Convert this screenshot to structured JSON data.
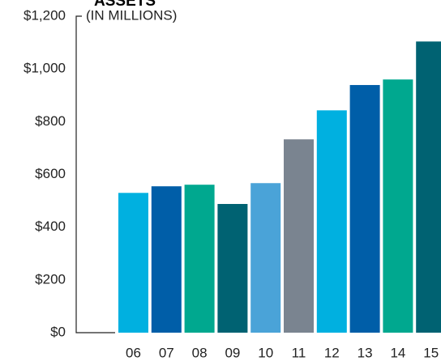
{
  "chart_data": {
    "type": "bar",
    "title": "ASSETS",
    "subtitle": "(IN MILLIONS)",
    "categories": [
      "06",
      "07",
      "08",
      "09",
      "10",
      "11",
      "12",
      "13",
      "14",
      "15"
    ],
    "values": [
      530,
      555,
      561,
      488,
      567,
      733,
      843,
      939,
      960,
      1104
    ],
    "colors": [
      "#00b0e0",
      "#005ea8",
      "#00a88f",
      "#006272",
      "#4aa3d8",
      "#7a8490",
      "#00b0e0",
      "#005ea8",
      "#00a88f",
      "#006272"
    ],
    "ylim": [
      0,
      1200
    ],
    "yticks": [
      {
        "value": 0,
        "label": "$0"
      },
      {
        "value": 200,
        "label": "$200"
      },
      {
        "value": 400,
        "label": "$400"
      },
      {
        "value": 600,
        "label": "$600"
      },
      {
        "value": 800,
        "label": "$800"
      },
      {
        "value": 1000,
        "label": "$1,000"
      },
      {
        "value": 1200,
        "label": "$1,200"
      }
    ]
  }
}
